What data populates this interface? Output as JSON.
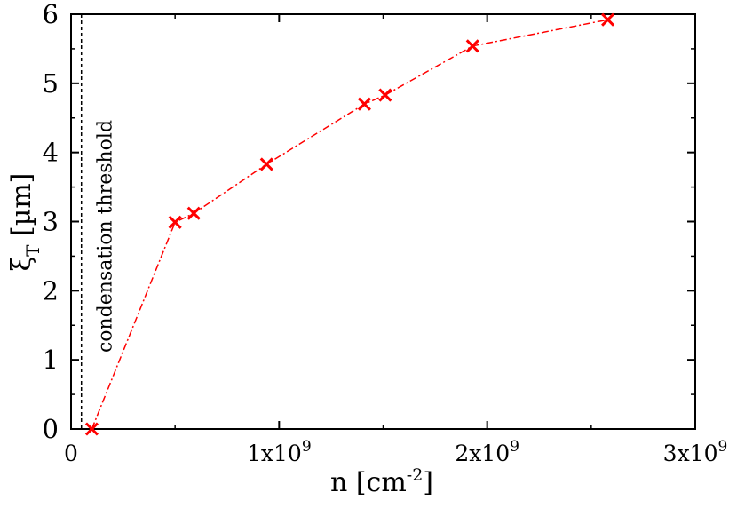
{
  "chart_data": {
    "type": "line",
    "xlabel": "n [cm",
    "xlabel_sup": "-2",
    "xlabel_end": "]",
    "ylabel": "ξ",
    "ylabel_sub": "T",
    "ylabel_end": " [µm]",
    "xlim": [
      0,
      3000000000
    ],
    "ylim": [
      0,
      6
    ],
    "x_ticks": [
      {
        "value": 0,
        "label": "0",
        "sup": ""
      },
      {
        "value": 1000000000,
        "label": "1x10",
        "sup": "9"
      },
      {
        "value": 2000000000,
        "label": "2x10",
        "sup": "9"
      },
      {
        "value": 3000000000,
        "label": "3x10",
        "sup": "9"
      }
    ],
    "y_ticks": [
      {
        "value": 0,
        "label": "0"
      },
      {
        "value": 1,
        "label": "1"
      },
      {
        "value": 2,
        "label": "2"
      },
      {
        "value": 3,
        "label": "3"
      },
      {
        "value": 4,
        "label": "4"
      },
      {
        "value": 5,
        "label": "5"
      },
      {
        "value": 6,
        "label": "6"
      }
    ],
    "series": [
      {
        "name": "xi_T",
        "color": "#ff0000",
        "marker": "x",
        "line_style": "dash-dot",
        "x": [
          100000000,
          500000000,
          590000000,
          940000000,
          1410000000,
          1510000000,
          1930000000,
          2580000000
        ],
        "y": [
          0,
          2.99,
          3.12,
          3.83,
          4.7,
          4.83,
          5.54,
          5.92
        ]
      }
    ],
    "threshold": {
      "x": 50000000,
      "label": "condensation threshold",
      "color": "#000000",
      "line_style": "dashed"
    }
  }
}
